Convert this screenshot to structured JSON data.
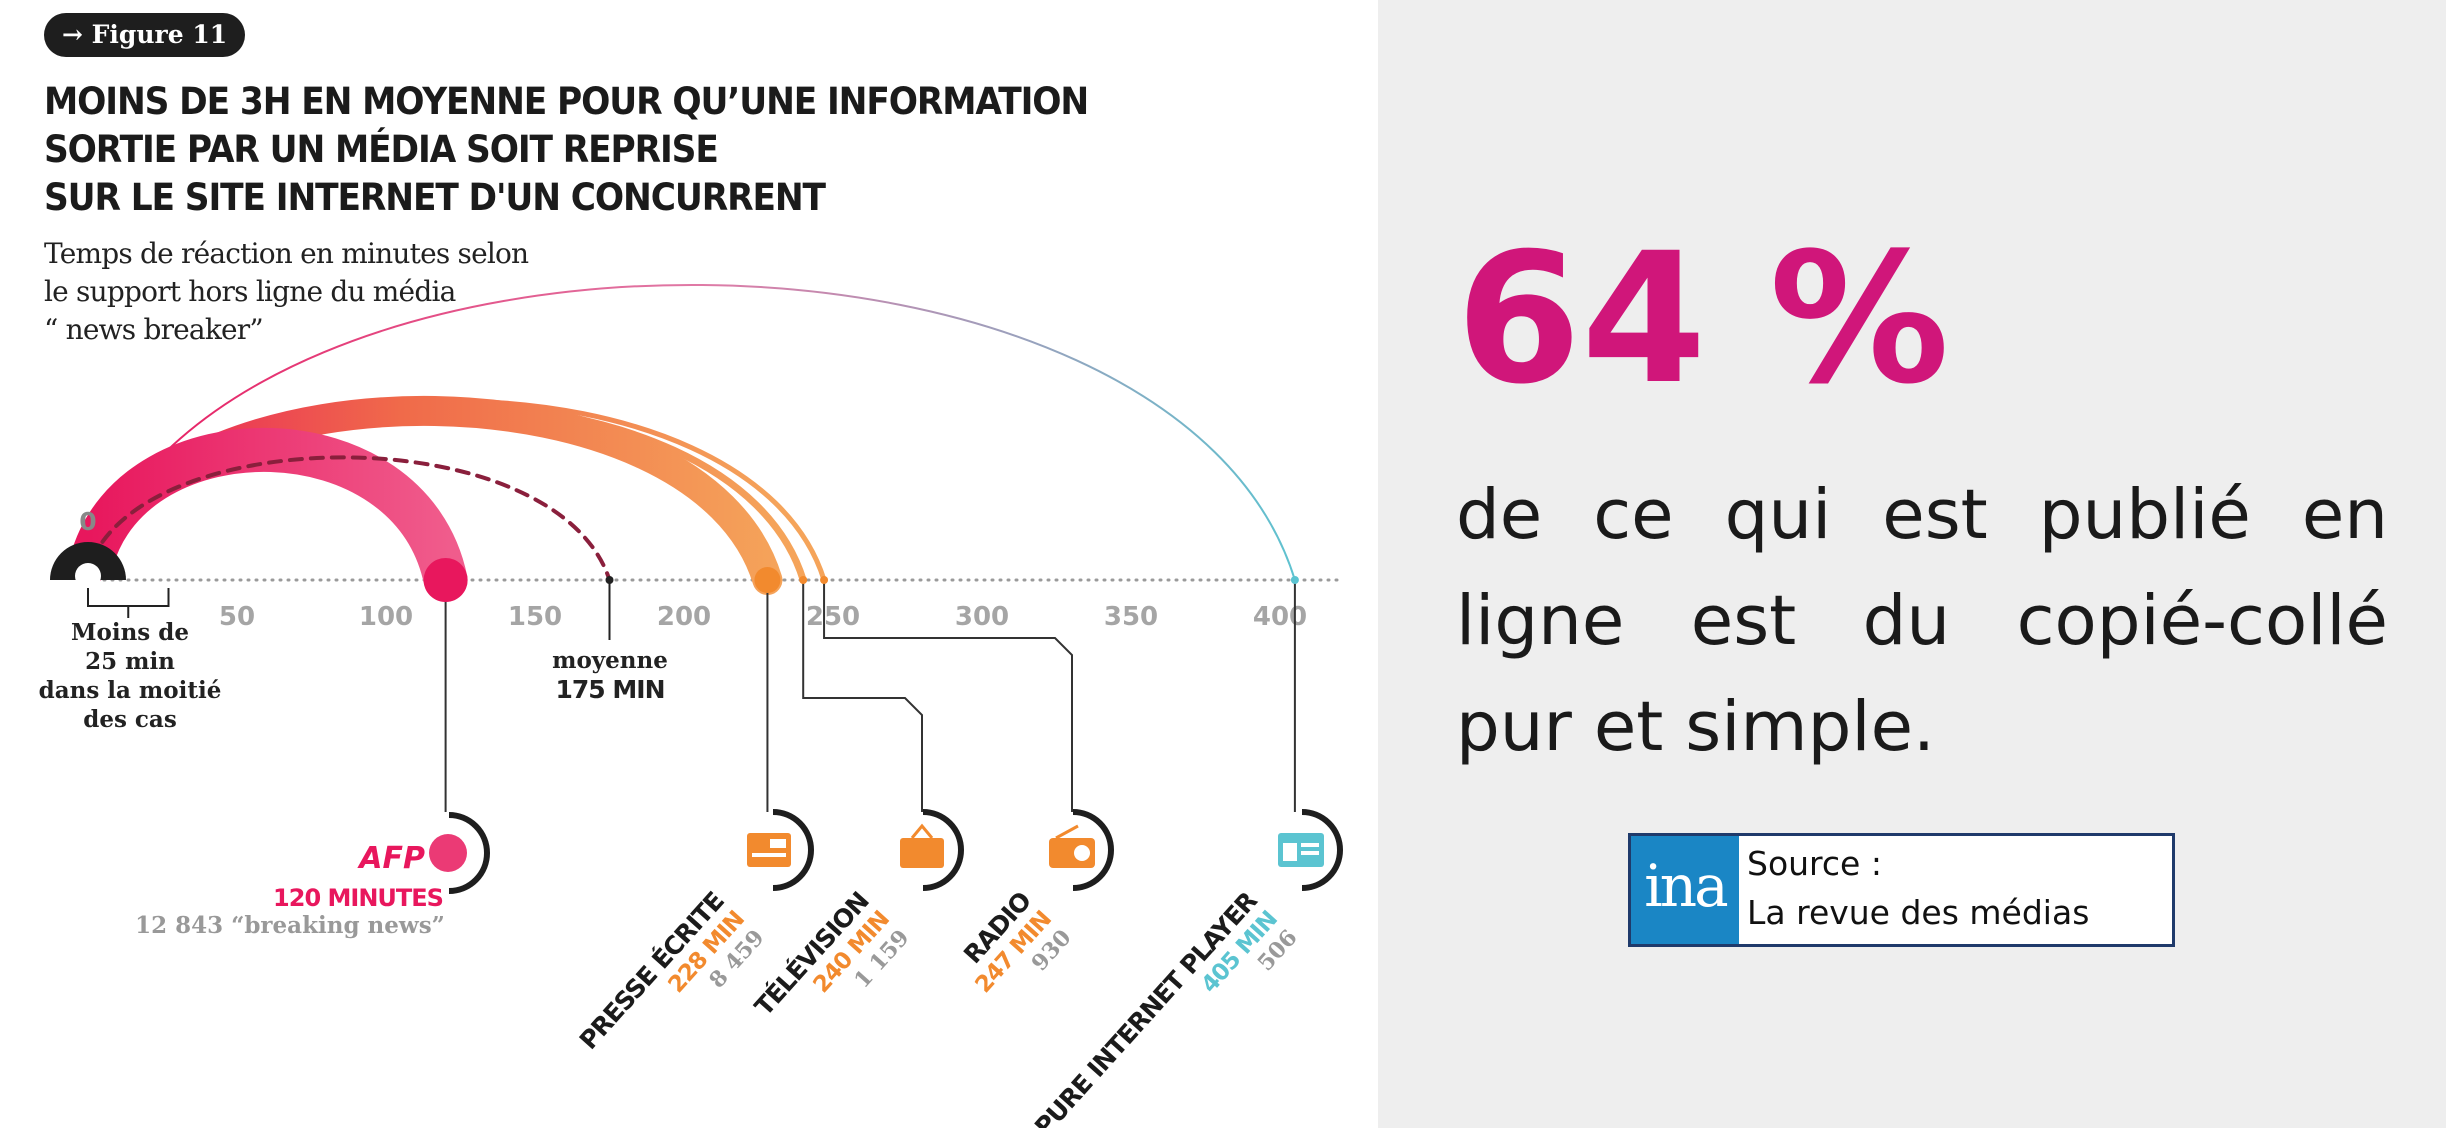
{
  "figure_badge": "→ Figure 11",
  "chart_data": {
    "type": "timeline",
    "title_lines": [
      "MOINS DE 3H EN MOYENNE POUR QU’UNE INFORMATION",
      "SORTIE PAR UN MÉDIA SOIT REPRISE",
      "SUR LE SITE INTERNET D'UN CONCURRENT"
    ],
    "subtitle_lines": [
      "Temps de réaction en minutes selon",
      "le support hors ligne du média",
      "“ news breaker”"
    ],
    "axis": {
      "range": [
        0,
        420
      ],
      "tick_values": [
        50,
        100,
        150,
        200,
        250,
        300,
        350,
        400
      ],
      "tick_labels": [
        "50",
        "100",
        "150",
        "200",
        "250",
        "300",
        "350",
        "400"
      ],
      "zero_label": "0"
    },
    "median_note": [
      "Moins de",
      "25 min",
      "dans la moitié",
      "des cas"
    ],
    "average": {
      "value": 175,
      "label": "moyenne",
      "value_label": "175 MIN"
    },
    "series": [
      {
        "name": "AFP",
        "minutes": 120,
        "minutes_label": "120 MINUTES",
        "count_label": "12 843 “breaking news”",
        "color": "#e8175d",
        "icon": "afp-logo-icon"
      },
      {
        "name": "PRESSE ÉCRITE",
        "minutes": 228,
        "minutes_label": "228 MIN",
        "count_label": "8 459",
        "color": "#f28a2e",
        "icon": "newspaper-icon"
      },
      {
        "name": "TÉLÉVISION",
        "minutes": 240,
        "minutes_label": "240 MIN",
        "count_label": "1 159",
        "color": "#f28a2e",
        "icon": "television-icon"
      },
      {
        "name": "RADIO",
        "minutes": 247,
        "minutes_label": "247 MIN",
        "count_label": "930",
        "color": "#f28a2e",
        "icon": "radio-icon"
      },
      {
        "name": "PURE INTERNET PLAYER",
        "minutes": 405,
        "minutes_label": "405 MIN",
        "count_label": "506",
        "color": "#5bc4d1",
        "icon": "web-page-icon"
      }
    ]
  },
  "stat": {
    "value": "64 %",
    "text": "de ce qui est publié en ligne est du copié-collé pur et simple."
  },
  "source": {
    "logo_text": "ina",
    "label": "Source :",
    "name": "La revue des médias"
  },
  "colors": {
    "pink": "#d0167a",
    "afp_red": "#e8175d",
    "orange": "#f28a2e",
    "cyan": "#5bc4d1",
    "right_bg": "#eeeeee"
  }
}
